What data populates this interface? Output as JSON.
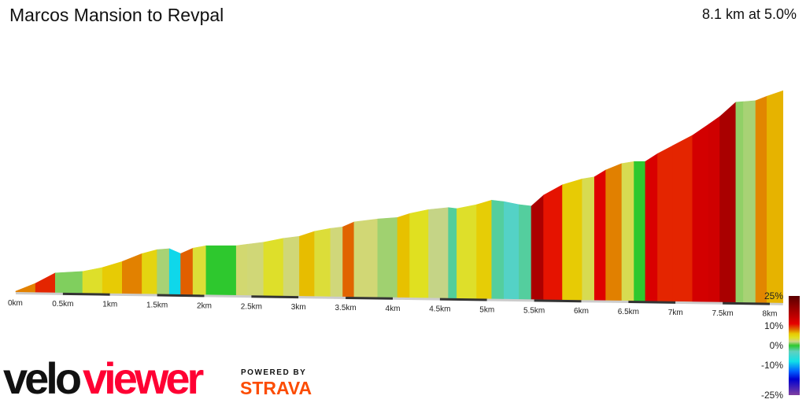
{
  "header": {
    "title": "Marcos Mansion to Revpal",
    "summary": "8.1 km at 5.0%"
  },
  "branding": {
    "logo_part1": "velo",
    "logo_part2": "viewer",
    "powered_by": "POWERED BY",
    "strava": "STRAVA"
  },
  "chart_data": {
    "type": "area",
    "title": "Marcos Mansion to Revpal",
    "xlabel": "",
    "ylabel": "",
    "x_unit": "km",
    "y_unit": "m (relative elevation)",
    "xlim": [
      0,
      8.14
    ],
    "x_ticks": [
      "0km",
      "0.5km",
      "1km",
      "1.5km",
      "2km",
      "2.5km",
      "3km",
      "3.5km",
      "4km",
      "4.5km",
      "5km",
      "5.5km",
      "6km",
      "6.5km",
      "7km",
      "7.5km",
      "8km"
    ],
    "profile": {
      "distance_km": [
        0,
        0.21,
        0.42,
        0.71,
        0.92,
        1.13,
        1.34,
        1.5,
        1.63,
        1.75,
        1.88,
        2.02,
        2.34,
        2.46,
        2.63,
        2.84,
        3.01,
        3.17,
        3.34,
        3.47,
        3.59,
        3.84,
        4.05,
        4.18,
        4.38,
        4.59,
        4.68,
        4.89,
        5.05,
        5.18,
        5.34,
        5.47,
        5.6,
        5.8,
        6.01,
        6.14,
        6.26,
        6.43,
        6.56,
        6.68,
        6.81,
        6.97,
        7.18,
        7.35,
        7.47,
        7.64,
        7.72,
        7.85,
        7.97,
        8.14
      ],
      "elevation_m": [
        0,
        16,
        37,
        40,
        48,
        60,
        76,
        84,
        86,
        76,
        87,
        92,
        92,
        95,
        99,
        107,
        111,
        121,
        127,
        130,
        140,
        146,
        149,
        157,
        165,
        169,
        167,
        175,
        184,
        181,
        175,
        172,
        194,
        215,
        227,
        231,
        245,
        258,
        262,
        262,
        278,
        294,
        315,
        337,
        353,
        382,
        383,
        385,
        394,
        405
      ]
    },
    "color_scale": {
      "labels": [
        "25%",
        "10%",
        "0%",
        "-10%",
        "-25%"
      ],
      "stops": [
        {
          "grade": 25,
          "color": "#5a0000"
        },
        {
          "grade": 14,
          "color": "#c80000"
        },
        {
          "grade": 11,
          "color": "#e60000"
        },
        {
          "grade": 8,
          "color": "#e07000"
        },
        {
          "grade": 6,
          "color": "#e8c800"
        },
        {
          "grade": 4,
          "color": "#e0e020"
        },
        {
          "grade": 2,
          "color": "#cdd58a"
        },
        {
          "grade": 0,
          "color": "#2ec82e"
        },
        {
          "grade": -3,
          "color": "#60d0c0"
        },
        {
          "grade": -8,
          "color": "#10e0e8"
        },
        {
          "grade": -13,
          "color": "#0060ff"
        },
        {
          "grade": -17,
          "color": "#0000d0"
        },
        {
          "grade": -25,
          "color": "#8040a0"
        }
      ]
    }
  }
}
